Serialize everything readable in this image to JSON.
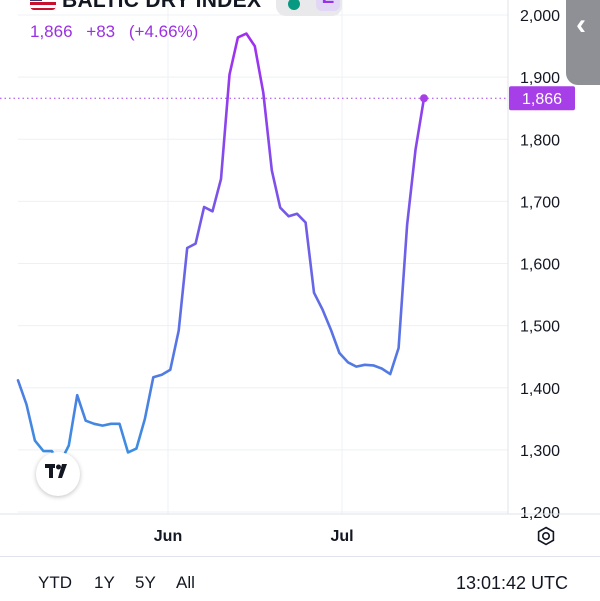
{
  "header": {
    "title": "BALTIC DRY INDEX",
    "status_letter": "E",
    "last_price": "1,866",
    "change": "+83",
    "change_pct": "(+4.66%)",
    "flag_icon": "us-flag-icon",
    "status_icon": "market-status-dot-icon"
  },
  "colors": {
    "line_start": "#3b8fe0",
    "line_end": "#a030f0",
    "price_text": "#9b30e0",
    "price_label_bg": "#a63fe8",
    "market_open_dot": "#089981"
  },
  "chart_data": {
    "type": "line",
    "title": "BALTIC DRY INDEX",
    "xlabel": "",
    "ylabel": "",
    "x_tick_labels": [
      "Jun",
      "Jul"
    ],
    "y_tick_labels": [
      "1,200",
      "1,300",
      "1,400",
      "1,500",
      "1,600",
      "1,700",
      "1,800",
      "1,900",
      "2,000"
    ],
    "ylim": [
      1200,
      2000
    ],
    "grid": true,
    "last_value": 1866,
    "last_value_label": "1,866",
    "x_positions_note_removed": true,
    "points": [
      {
        "x": "May 19",
        "y": 1412
      },
      {
        "x": "May 20",
        "y": 1373
      },
      {
        "x": "May 21",
        "y": 1315
      },
      {
        "x": "May 22",
        "y": 1298
      },
      {
        "x": "May 23",
        "y": 1298
      },
      {
        "x": "May 26",
        "y": 1280
      },
      {
        "x": "May 27",
        "y": 1307
      },
      {
        "x": "May 28",
        "y": 1388
      },
      {
        "x": "May 29",
        "y": 1347
      },
      {
        "x": "May 30",
        "y": 1342
      },
      {
        "x": "Jun 2",
        "y": 1339
      },
      {
        "x": "Jun 3",
        "y": 1342
      },
      {
        "x": "Jun 4",
        "y": 1342
      },
      {
        "x": "Jun 5",
        "y": 1296
      },
      {
        "x": "Jun 6",
        "y": 1302
      },
      {
        "x": "Jun 9",
        "y": 1350
      },
      {
        "x": "Jun 10",
        "y": 1417
      },
      {
        "x": "Jun 11",
        "y": 1421
      },
      {
        "x": "Jun 12",
        "y": 1429
      },
      {
        "x": "Jun 13",
        "y": 1492
      },
      {
        "x": "Jun 16",
        "y": 1625
      },
      {
        "x": "Jun 17",
        "y": 1632
      },
      {
        "x": "Jun 18",
        "y": 1691
      },
      {
        "x": "Jun 19",
        "y": 1684
      },
      {
        "x": "Jun 20",
        "y": 1736
      },
      {
        "x": "Jun 23",
        "y": 1904
      },
      {
        "x": "Jun 24",
        "y": 1964
      },
      {
        "x": "Jun 25",
        "y": 1970
      },
      {
        "x": "Jun 26",
        "y": 1950
      },
      {
        "x": "Jun 27",
        "y": 1875
      },
      {
        "x": "Jun 30",
        "y": 1750
      },
      {
        "x": "Jul 1",
        "y": 1690
      },
      {
        "x": "Jul 2",
        "y": 1676
      },
      {
        "x": "Jul 3",
        "y": 1680
      },
      {
        "x": "Jul 4",
        "y": 1666
      },
      {
        "x": "Jul 7",
        "y": 1553
      },
      {
        "x": "Jul 8",
        "y": 1526
      },
      {
        "x": "Jul 9",
        "y": 1493
      },
      {
        "x": "Jul 10",
        "y": 1456
      },
      {
        "x": "Jul 11",
        "y": 1441
      },
      {
        "x": "Jul 14",
        "y": 1434
      },
      {
        "x": "Jul 15",
        "y": 1437
      },
      {
        "x": "Jul 16",
        "y": 1436
      },
      {
        "x": "Jul 17",
        "y": 1431
      },
      {
        "x": "Jul 18",
        "y": 1422
      },
      {
        "x": "Jul 21",
        "y": 1464
      },
      {
        "x": "Jul 22",
        "y": 1662
      },
      {
        "x": "Jul 23",
        "y": 1783
      },
      {
        "x": "Jul 24",
        "y": 1866
      }
    ]
  },
  "footer": {
    "ranges": [
      "YTD",
      "1Y",
      "5Y",
      "All"
    ],
    "clock": "13:01:42 UTC",
    "settings_icon": "settings-gear-icon"
  },
  "controls": {
    "side_handle_icon": "chevron-left-icon",
    "logo_icon": "tradingview-logo-icon"
  }
}
